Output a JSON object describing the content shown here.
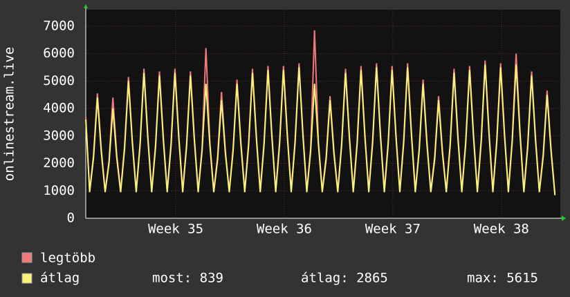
{
  "chart_data": {
    "type": "line",
    "ylabel": "onlinestream.live",
    "x": [
      0,
      0.25,
      0.5,
      0.75,
      1,
      1.25,
      1.5,
      1.75,
      2,
      2.25,
      2.5,
      2.75,
      3,
      3.25,
      3.5,
      3.75,
      4,
      4.25,
      4.5,
      4.75,
      5,
      5.25,
      5.5,
      5.75,
      6,
      6.25,
      6.5,
      6.75,
      7,
      7.25,
      7.5,
      7.75,
      8,
      8.25,
      8.5,
      8.75,
      9,
      9.25,
      9.5,
      9.75,
      10,
      10.25,
      10.5,
      10.75,
      11,
      11.25,
      11.5,
      11.75,
      12,
      12.25,
      12.5,
      12.75,
      13,
      13.25,
      13.5,
      13.75,
      14,
      14.25,
      14.5,
      14.75,
      15,
      15.25,
      15.5,
      15.75,
      16,
      16.25,
      16.5,
      16.75,
      17,
      17.25,
      17.5,
      17.75,
      18,
      18.25,
      18.5,
      18.75,
      19,
      19.25,
      19.5,
      19.75,
      20,
      20.25,
      20.5,
      20.75,
      21,
      21.25,
      21.5,
      21.75,
      22,
      22.25,
      22.5,
      22.75,
      23,
      23.25,
      23.5,
      23.75,
      24,
      24.25,
      24.5,
      24.75,
      25,
      25.25,
      25.5,
      25.75,
      26,
      26.25,
      26.5,
      26.75,
      27,
      27.25,
      27.5,
      27.75,
      28,
      28.25,
      28.5,
      28.75,
      29,
      29.25,
      29.5,
      29.75,
      30,
      30.25
    ],
    "series": [
      {
        "name": "legtöbb",
        "color": "#f07a7a",
        "values": [
          3700,
          1000,
          2300,
          4550,
          2520,
          1000,
          2100,
          4400,
          2300,
          1000,
          2600,
          5150,
          2850,
          1000,
          2750,
          5450,
          3015,
          1000,
          2700,
          5350,
          2960,
          1000,
          2750,
          5450,
          3015,
          1000,
          2700,
          5350,
          2960,
          1000,
          2550,
          6200,
          2795,
          1000,
          2250,
          4600,
          2465,
          1000,
          2550,
          5050,
          2795,
          1000,
          2750,
          5450,
          3015,
          1000,
          2800,
          5550,
          3070,
          1000,
          2800,
          5550,
          3070,
          1000,
          2850,
          5650,
          3125,
          1000,
          2550,
          6850,
          2795,
          1000,
          2250,
          4450,
          2465,
          1000,
          2750,
          5450,
          3015,
          1000,
          2800,
          5550,
          3070,
          1000,
          2850,
          5650,
          3125,
          1000,
          2800,
          5550,
          3070,
          1000,
          2850,
          5650,
          3125,
          1000,
          2550,
          5050,
          2795,
          1000,
          2250,
          4450,
          2465,
          1000,
          2750,
          5450,
          3015,
          1000,
          2800,
          5550,
          3070,
          1000,
          2900,
          5750,
          3180,
          1000,
          2850,
          5650,
          3125,
          1000,
          2900,
          6000,
          3180,
          1000,
          2700,
          5350,
          2960,
          1000,
          2350,
          4650,
          2575,
          900
        ]
      },
      {
        "name": "átlag",
        "color": "#f8f27a",
        "values": [
          3600,
          950,
          2200,
          4400,
          2420,
          950,
          2000,
          4000,
          2200,
          950,
          2500,
          5000,
          2750,
          950,
          2650,
          5300,
          2915,
          950,
          2600,
          5200,
          2860,
          950,
          2650,
          5300,
          2915,
          950,
          2600,
          5200,
          2860,
          950,
          2450,
          4900,
          2695,
          950,
          2150,
          4300,
          2365,
          950,
          2450,
          4900,
          2695,
          950,
          2650,
          5300,
          2915,
          950,
          2700,
          5400,
          2970,
          950,
          2700,
          5400,
          2970,
          950,
          2750,
          5500,
          3025,
          950,
          2450,
          4900,
          2695,
          950,
          2150,
          4300,
          2365,
          950,
          2650,
          5300,
          2915,
          950,
          2700,
          5400,
          2970,
          950,
          2750,
          5500,
          3025,
          950,
          2700,
          5400,
          2970,
          950,
          2750,
          5500,
          3025,
          950,
          2450,
          4900,
          2695,
          950,
          2150,
          4300,
          2365,
          950,
          2650,
          5300,
          2915,
          950,
          2700,
          5400,
          2970,
          950,
          2800,
          5600,
          3080,
          950,
          2750,
          5500,
          3025,
          950,
          2800,
          5600,
          3080,
          950,
          2600,
          5200,
          2860,
          950,
          2250,
          4500,
          2475,
          839
        ]
      }
    ],
    "xlim": [
      0,
      30.6
    ],
    "xticks": [
      {
        "value": 5.8,
        "label": "Week 35"
      },
      {
        "value": 12.8,
        "label": "Week 36"
      },
      {
        "value": 19.8,
        "label": "Week 37"
      },
      {
        "value": 26.8,
        "label": "Week 38"
      }
    ],
    "ylim": [
      0,
      7600
    ],
    "yticks": [
      0,
      1000,
      2000,
      3000,
      4000,
      5000,
      6000,
      7000
    ],
    "grid": true,
    "stats": [
      "most: 839",
      "átlag: 2865",
      "max: 5615"
    ]
  }
}
